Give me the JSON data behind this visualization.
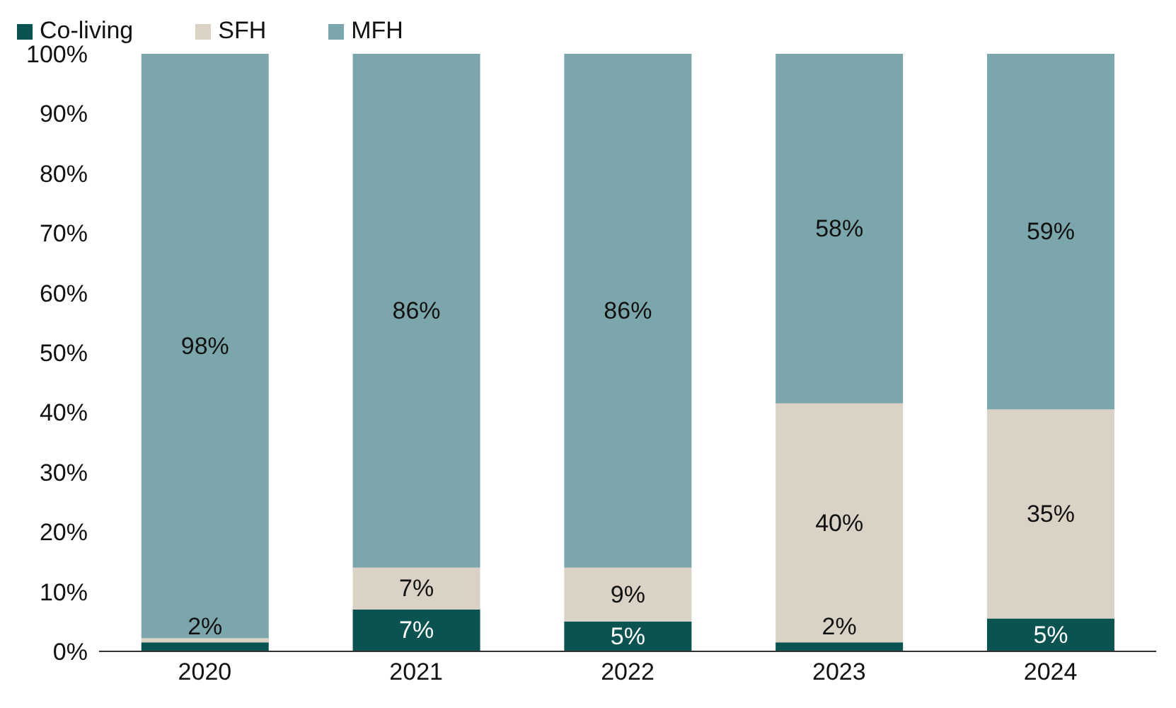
{
  "chart_data": {
    "type": "bar",
    "stacked": true,
    "categories": [
      "2020",
      "2021",
      "2022",
      "2023",
      "2024"
    ],
    "series": [
      {
        "name": "Co-living",
        "color": "#0b5350",
        "values": [
          1.5,
          7,
          5,
          1.5,
          5.5
        ],
        "value_labels": [
          "2%",
          "7%",
          "5%",
          "2%",
          "5%"
        ]
      },
      {
        "name": "SFH",
        "color": "#d9d2c5",
        "values": [
          0.7,
          7,
          9,
          40,
          35
        ],
        "value_labels": [
          null,
          "7%",
          "9%",
          "40%",
          "35%"
        ]
      },
      {
        "name": "MFH",
        "color": "#7ba6ab",
        "values": [
          97.8,
          86,
          86,
          58.5,
          59.5
        ],
        "value_labels": [
          "98%",
          "86%",
          "86%",
          "58%",
          "59%"
        ]
      }
    ],
    "ylim": [
      0,
      100
    ],
    "yticks": [
      {
        "value": 0,
        "label": "0%"
      },
      {
        "value": 10,
        "label": "10%"
      },
      {
        "value": 20,
        "label": "20%"
      },
      {
        "value": 30,
        "label": "30%"
      },
      {
        "value": 40,
        "label": "40%"
      },
      {
        "value": 50,
        "label": "50%"
      },
      {
        "value": 60,
        "label": "60%"
      },
      {
        "value": 70,
        "label": "70%"
      },
      {
        "value": 80,
        "label": "80%"
      },
      {
        "value": 90,
        "label": "90%"
      },
      {
        "value": 100,
        "label": "100%"
      }
    ],
    "grid": false,
    "legend": "top left"
  }
}
